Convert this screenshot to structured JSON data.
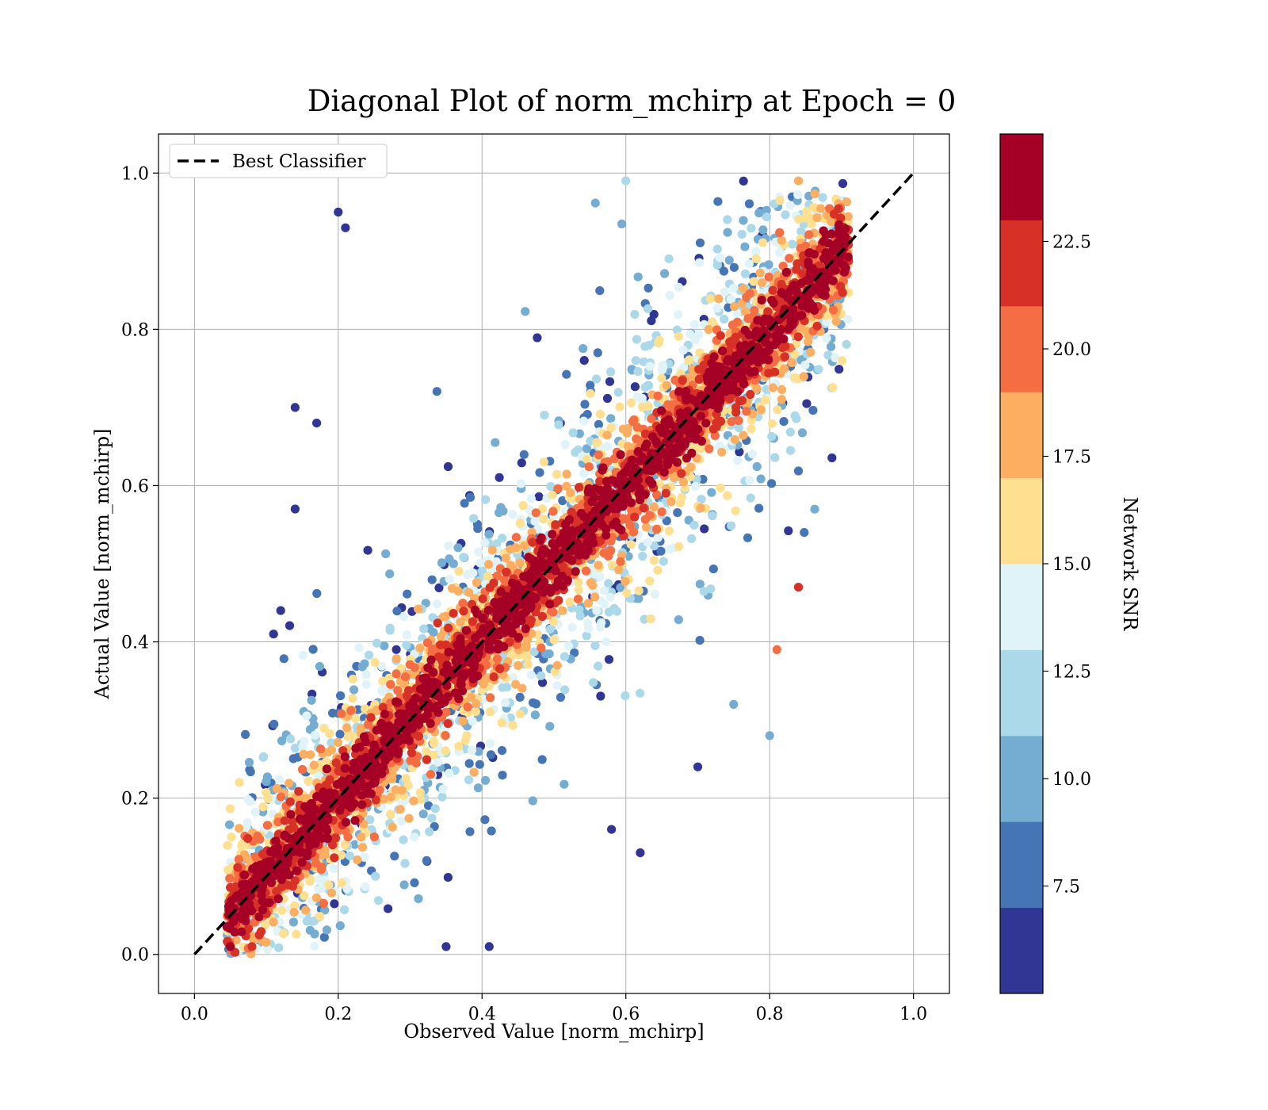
{
  "chart_data": {
    "type": "scatter",
    "title": "Diagonal Plot of norm_mchirp at Epoch = 0",
    "xlabel": "Observed Value [norm_mchirp]",
    "ylabel": "Actual Value [norm_mchirp]",
    "xlim": [
      -0.05,
      1.05
    ],
    "ylim": [
      -0.05,
      1.05
    ],
    "xticks": [
      "0.0",
      "0.2",
      "0.4",
      "0.6",
      "0.8",
      "1.0"
    ],
    "yticks": [
      "0.0",
      "0.2",
      "0.4",
      "0.6",
      "0.8",
      "1.0"
    ],
    "xtick_values": [
      0.0,
      0.2,
      0.4,
      0.6,
      0.8,
      1.0
    ],
    "ytick_values": [
      0.0,
      0.2,
      0.4,
      0.6,
      0.8,
      1.0
    ],
    "grid": true,
    "legend": {
      "position": "upper-left",
      "entries": [
        "Best Classifier"
      ]
    },
    "reference_line": {
      "name": "Best Classifier",
      "x": [
        0.0,
        1.0
      ],
      "y": [
        0.0,
        1.0
      ],
      "style": "dashed",
      "color": "#000000"
    },
    "colorbar": {
      "label": "Network SNR",
      "min": 5.0,
      "max": 25.0,
      "ticks": [
        "7.5",
        "10.0",
        "12.5",
        "15.0",
        "17.5",
        "20.0",
        "22.5"
      ],
      "tick_values": [
        7.5,
        10.0,
        12.5,
        15.0,
        17.5,
        20.0,
        22.5
      ],
      "colors": [
        "#313695",
        "#4575b4",
        "#74add1",
        "#abd9e9",
        "#e0f3f8",
        "#fee090",
        "#fdae61",
        "#f46d43",
        "#d73027",
        "#a50026"
      ]
    },
    "scatter_description": {
      "x_range": [
        0.04,
        0.91
      ],
      "y_range": [
        0.0,
        0.99
      ],
      "trend": "points cluster along the diagonal; high SNR points tight to the line, low SNR points widely scattered"
    },
    "points_sample": [
      {
        "x": 0.2,
        "y": 0.95,
        "snr": 6
      },
      {
        "x": 0.21,
        "y": 0.93,
        "snr": 6
      },
      {
        "x": 0.14,
        "y": 0.7,
        "snr": 6
      },
      {
        "x": 0.17,
        "y": 0.68,
        "snr": 6
      },
      {
        "x": 0.14,
        "y": 0.57,
        "snr": 6
      },
      {
        "x": 0.11,
        "y": 0.41,
        "snr": 6
      },
      {
        "x": 0.12,
        "y": 0.44,
        "snr": 6
      },
      {
        "x": 0.8,
        "y": 0.28,
        "snr": 9
      },
      {
        "x": 0.75,
        "y": 0.32,
        "snr": 9
      },
      {
        "x": 0.7,
        "y": 0.24,
        "snr": 6
      },
      {
        "x": 0.62,
        "y": 0.13,
        "snr": 6
      },
      {
        "x": 0.58,
        "y": 0.16,
        "snr": 6
      },
      {
        "x": 0.81,
        "y": 0.39,
        "snr": 20
      },
      {
        "x": 0.84,
        "y": 0.47,
        "snr": 21
      },
      {
        "x": 0.35,
        "y": 0.01,
        "snr": 6
      },
      {
        "x": 0.41,
        "y": 0.01,
        "snr": 6
      },
      {
        "x": 0.05,
        "y": 0.01,
        "snr": 24
      },
      {
        "x": 0.08,
        "y": 0.01,
        "snr": 22
      },
      {
        "x": 0.6,
        "y": 0.99,
        "snr": 12
      },
      {
        "x": 0.84,
        "y": 0.99,
        "snr": 18
      }
    ]
  }
}
